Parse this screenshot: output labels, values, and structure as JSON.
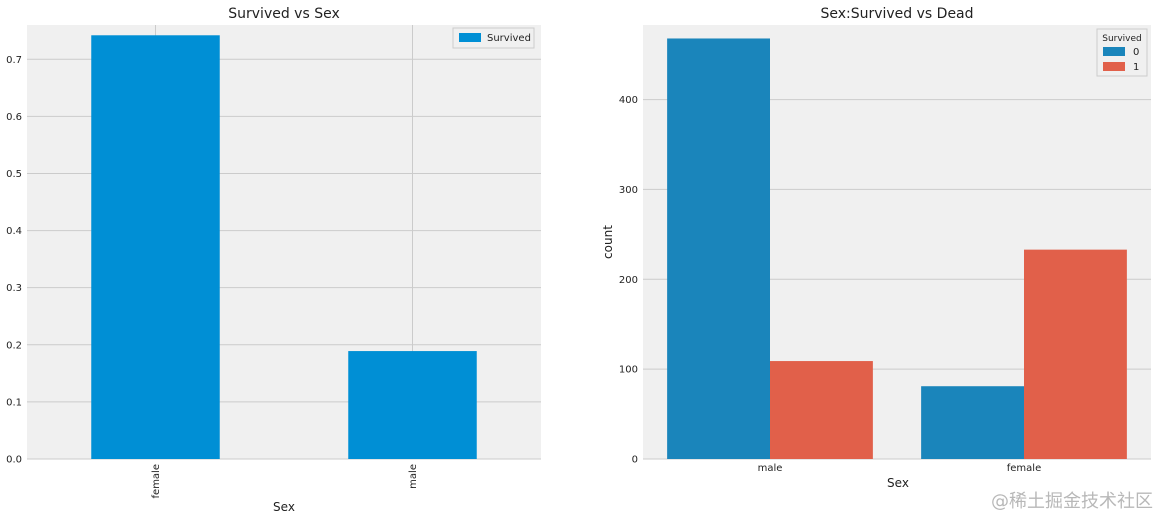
{
  "colors": {
    "plot_bg": "#f0f0f0",
    "grid": "#cbcbcb",
    "bar_left": "#008fd5",
    "series_0": "#1a85bb",
    "series_1": "#e1604a"
  },
  "watermark": "@稀土掘金技术社区",
  "chart_data": [
    {
      "type": "bar",
      "title": "Survived vs Sex",
      "xlabel": "Sex",
      "ylabel": "",
      "categories": [
        "female",
        "male"
      ],
      "series": [
        {
          "name": "Survived",
          "values": [
            0.742,
            0.189
          ]
        }
      ],
      "ylim": [
        0,
        0.76
      ],
      "yticks": [
        0.0,
        0.1,
        0.2,
        0.3,
        0.4,
        0.5,
        0.6,
        0.7
      ],
      "ytick_labels": [
        "0.0",
        "0.1",
        "0.2",
        "0.3",
        "0.4",
        "0.5",
        "0.6",
        "0.7"
      ],
      "legend_loc": "upper right",
      "grid": true,
      "xtick_rotation": "vertical"
    },
    {
      "type": "bar",
      "title": "Sex:Survived vs Dead",
      "xlabel": "Sex",
      "ylabel": "count",
      "categories": [
        "male",
        "female"
      ],
      "legend_title": "Survived",
      "series": [
        {
          "name": "0",
          "values": [
            468,
            81
          ]
        },
        {
          "name": "1",
          "values": [
            109,
            233
          ]
        }
      ],
      "ylim": [
        0,
        483
      ],
      "yticks": [
        0,
        100,
        200,
        300,
        400
      ],
      "ytick_labels": [
        "0",
        "100",
        "200",
        "300",
        "400"
      ],
      "legend_loc": "upper right",
      "grid": true
    }
  ]
}
